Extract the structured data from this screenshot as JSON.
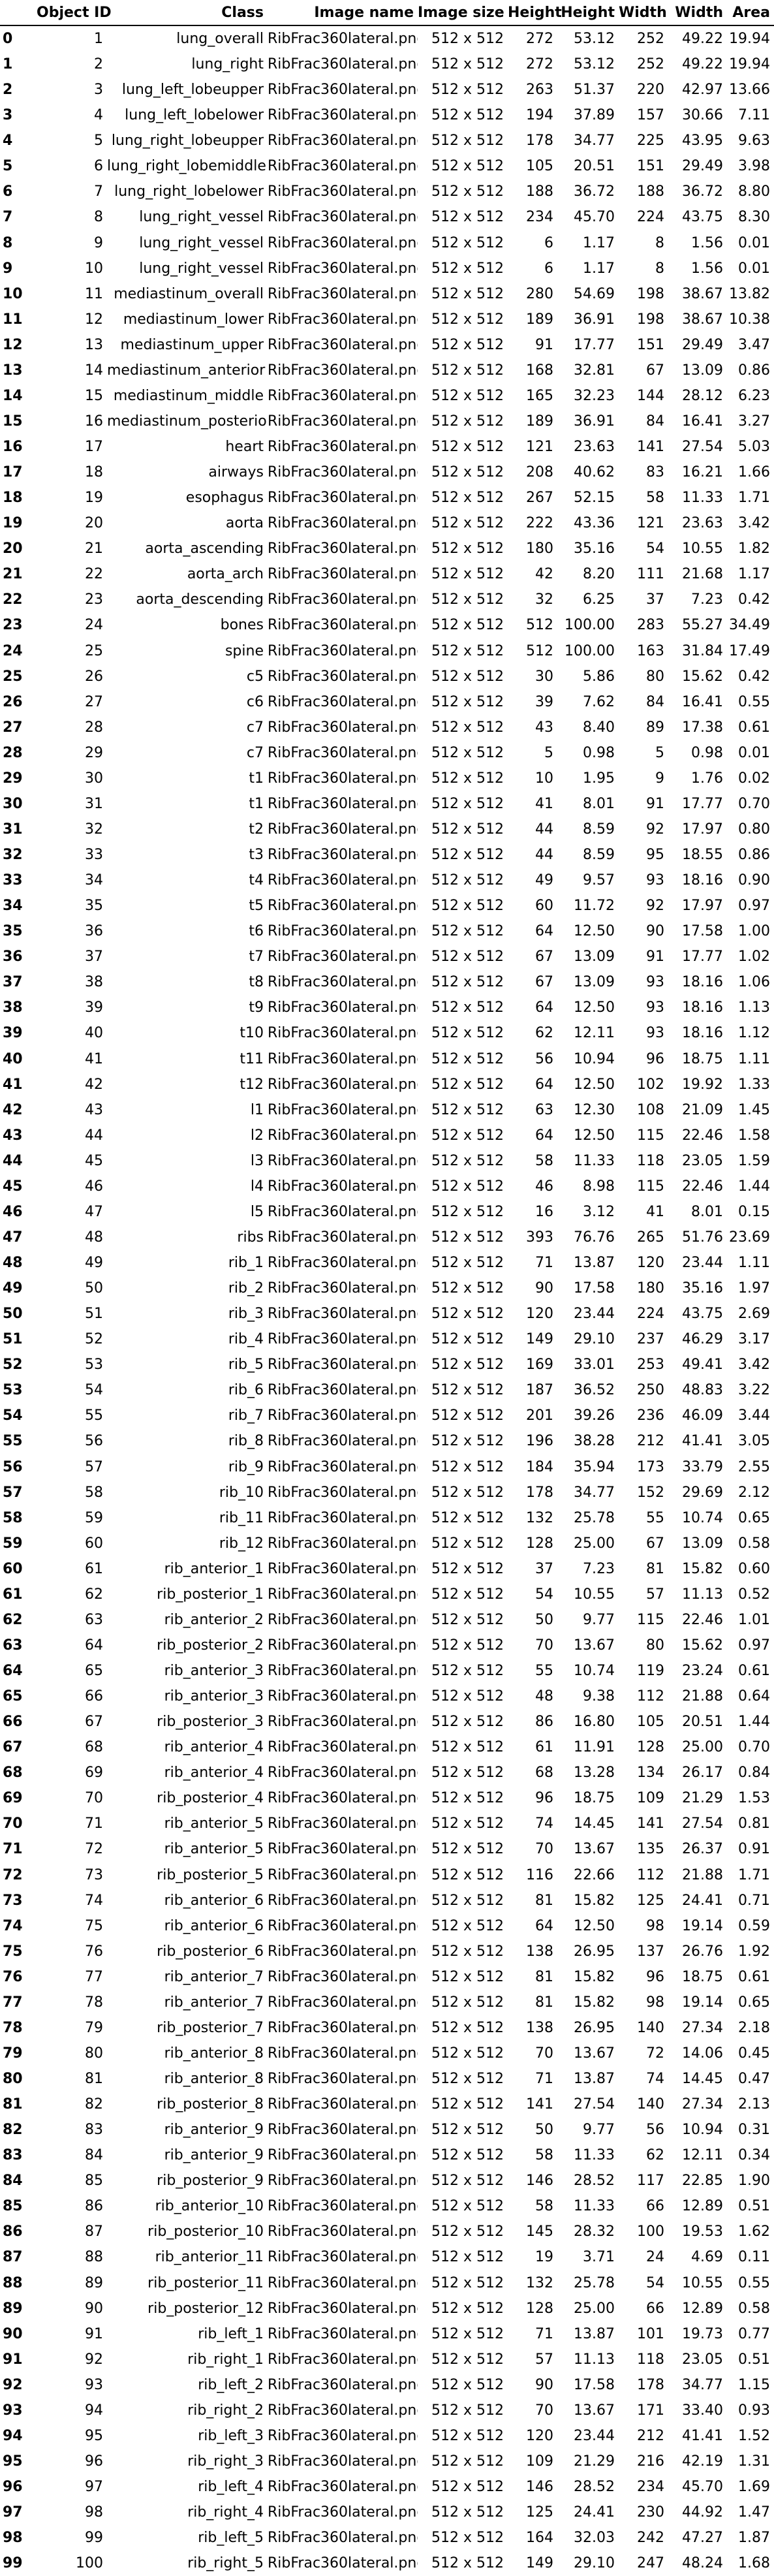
{
  "columns": [
    "",
    "Object ID",
    "Class",
    "Image name",
    "Image size",
    "Height",
    "Height",
    "Width",
    "Width",
    "Area"
  ],
  "rows": [
    [
      "0",
      "1",
      "lung_overall",
      "RibFrac360lateral.png",
      "512 x 512",
      "272",
      "53.12",
      "252",
      "49.22",
      "19.94"
    ],
    [
      "1",
      "2",
      "lung_right",
      "RibFrac360lateral.png",
      "512 x 512",
      "272",
      "53.12",
      "252",
      "49.22",
      "19.94"
    ],
    [
      "2",
      "3",
      "lung_left_lobeupper",
      "RibFrac360lateral.png",
      "512 x 512",
      "263",
      "51.37",
      "220",
      "42.97",
      "13.66"
    ],
    [
      "3",
      "4",
      "lung_left_lobelower",
      "RibFrac360lateral.png",
      "512 x 512",
      "194",
      "37.89",
      "157",
      "30.66",
      "7.11"
    ],
    [
      "4",
      "5",
      "lung_right_lobeupper",
      "RibFrac360lateral.png",
      "512 x 512",
      "178",
      "34.77",
      "225",
      "43.95",
      "9.63"
    ],
    [
      "5",
      "6",
      "lung_right_lobemiddle",
      "RibFrac360lateral.png",
      "512 x 512",
      "105",
      "20.51",
      "151",
      "29.49",
      "3.98"
    ],
    [
      "6",
      "7",
      "lung_right_lobelower",
      "RibFrac360lateral.png",
      "512 x 512",
      "188",
      "36.72",
      "188",
      "36.72",
      "8.80"
    ],
    [
      "7",
      "8",
      "lung_right_vessel",
      "RibFrac360lateral.png",
      "512 x 512",
      "234",
      "45.70",
      "224",
      "43.75",
      "8.30"
    ],
    [
      "8",
      "9",
      "lung_right_vessel",
      "RibFrac360lateral.png",
      "512 x 512",
      "6",
      "1.17",
      "8",
      "1.56",
      "0.01"
    ],
    [
      "9",
      "10",
      "lung_right_vessel",
      "RibFrac360lateral.png",
      "512 x 512",
      "6",
      "1.17",
      "8",
      "1.56",
      "0.01"
    ],
    [
      "10",
      "11",
      "mediastinum_overall",
      "RibFrac360lateral.png",
      "512 x 512",
      "280",
      "54.69",
      "198",
      "38.67",
      "13.82"
    ],
    [
      "11",
      "12",
      "mediastinum_lower",
      "RibFrac360lateral.png",
      "512 x 512",
      "189",
      "36.91",
      "198",
      "38.67",
      "10.38"
    ],
    [
      "12",
      "13",
      "mediastinum_upper",
      "RibFrac360lateral.png",
      "512 x 512",
      "91",
      "17.77",
      "151",
      "29.49",
      "3.47"
    ],
    [
      "13",
      "14",
      "mediastinum_anterior",
      "RibFrac360lateral.png",
      "512 x 512",
      "168",
      "32.81",
      "67",
      "13.09",
      "0.86"
    ],
    [
      "14",
      "15",
      "mediastinum_middle",
      "RibFrac360lateral.png",
      "512 x 512",
      "165",
      "32.23",
      "144",
      "28.12",
      "6.23"
    ],
    [
      "15",
      "16",
      "mediastinum_posterior",
      "RibFrac360lateral.png",
      "512 x 512",
      "189",
      "36.91",
      "84",
      "16.41",
      "3.27"
    ],
    [
      "16",
      "17",
      "heart",
      "RibFrac360lateral.png",
      "512 x 512",
      "121",
      "23.63",
      "141",
      "27.54",
      "5.03"
    ],
    [
      "17",
      "18",
      "airways",
      "RibFrac360lateral.png",
      "512 x 512",
      "208",
      "40.62",
      "83",
      "16.21",
      "1.66"
    ],
    [
      "18",
      "19",
      "esophagus",
      "RibFrac360lateral.png",
      "512 x 512",
      "267",
      "52.15",
      "58",
      "11.33",
      "1.71"
    ],
    [
      "19",
      "20",
      "aorta",
      "RibFrac360lateral.png",
      "512 x 512",
      "222",
      "43.36",
      "121",
      "23.63",
      "3.42"
    ],
    [
      "20",
      "21",
      "aorta_ascending",
      "RibFrac360lateral.png",
      "512 x 512",
      "180",
      "35.16",
      "54",
      "10.55",
      "1.82"
    ],
    [
      "21",
      "22",
      "aorta_arch",
      "RibFrac360lateral.png",
      "512 x 512",
      "42",
      "8.20",
      "111",
      "21.68",
      "1.17"
    ],
    [
      "22",
      "23",
      "aorta_descending",
      "RibFrac360lateral.png",
      "512 x 512",
      "32",
      "6.25",
      "37",
      "7.23",
      "0.42"
    ],
    [
      "23",
      "24",
      "bones",
      "RibFrac360lateral.png",
      "512 x 512",
      "512",
      "100.00",
      "283",
      "55.27",
      "34.49"
    ],
    [
      "24",
      "25",
      "spine",
      "RibFrac360lateral.png",
      "512 x 512",
      "512",
      "100.00",
      "163",
      "31.84",
      "17.49"
    ],
    [
      "25",
      "26",
      "c5",
      "RibFrac360lateral.png",
      "512 x 512",
      "30",
      "5.86",
      "80",
      "15.62",
      "0.42"
    ],
    [
      "26",
      "27",
      "c6",
      "RibFrac360lateral.png",
      "512 x 512",
      "39",
      "7.62",
      "84",
      "16.41",
      "0.55"
    ],
    [
      "27",
      "28",
      "c7",
      "RibFrac360lateral.png",
      "512 x 512",
      "43",
      "8.40",
      "89",
      "17.38",
      "0.61"
    ],
    [
      "28",
      "29",
      "c7",
      "RibFrac360lateral.png",
      "512 x 512",
      "5",
      "0.98",
      "5",
      "0.98",
      "0.01"
    ],
    [
      "29",
      "30",
      "t1",
      "RibFrac360lateral.png",
      "512 x 512",
      "10",
      "1.95",
      "9",
      "1.76",
      "0.02"
    ],
    [
      "30",
      "31",
      "t1",
      "RibFrac360lateral.png",
      "512 x 512",
      "41",
      "8.01",
      "91",
      "17.77",
      "0.70"
    ],
    [
      "31",
      "32",
      "t2",
      "RibFrac360lateral.png",
      "512 x 512",
      "44",
      "8.59",
      "92",
      "17.97",
      "0.80"
    ],
    [
      "32",
      "33",
      "t3",
      "RibFrac360lateral.png",
      "512 x 512",
      "44",
      "8.59",
      "95",
      "18.55",
      "0.86"
    ],
    [
      "33",
      "34",
      "t4",
      "RibFrac360lateral.png",
      "512 x 512",
      "49",
      "9.57",
      "93",
      "18.16",
      "0.90"
    ],
    [
      "34",
      "35",
      "t5",
      "RibFrac360lateral.png",
      "512 x 512",
      "60",
      "11.72",
      "92",
      "17.97",
      "0.97"
    ],
    [
      "35",
      "36",
      "t6",
      "RibFrac360lateral.png",
      "512 x 512",
      "64",
      "12.50",
      "90",
      "17.58",
      "1.00"
    ],
    [
      "36",
      "37",
      "t7",
      "RibFrac360lateral.png",
      "512 x 512",
      "67",
      "13.09",
      "91",
      "17.77",
      "1.02"
    ],
    [
      "37",
      "38",
      "t8",
      "RibFrac360lateral.png",
      "512 x 512",
      "67",
      "13.09",
      "93",
      "18.16",
      "1.06"
    ],
    [
      "38",
      "39",
      "t9",
      "RibFrac360lateral.png",
      "512 x 512",
      "64",
      "12.50",
      "93",
      "18.16",
      "1.13"
    ],
    [
      "39",
      "40",
      "t10",
      "RibFrac360lateral.png",
      "512 x 512",
      "62",
      "12.11",
      "93",
      "18.16",
      "1.12"
    ],
    [
      "40",
      "41",
      "t11",
      "RibFrac360lateral.png",
      "512 x 512",
      "56",
      "10.94",
      "96",
      "18.75",
      "1.11"
    ],
    [
      "41",
      "42",
      "t12",
      "RibFrac360lateral.png",
      "512 x 512",
      "64",
      "12.50",
      "102",
      "19.92",
      "1.33"
    ],
    [
      "42",
      "43",
      "l1",
      "RibFrac360lateral.png",
      "512 x 512",
      "63",
      "12.30",
      "108",
      "21.09",
      "1.45"
    ],
    [
      "43",
      "44",
      "l2",
      "RibFrac360lateral.png",
      "512 x 512",
      "64",
      "12.50",
      "115",
      "22.46",
      "1.58"
    ],
    [
      "44",
      "45",
      "l3",
      "RibFrac360lateral.png",
      "512 x 512",
      "58",
      "11.33",
      "118",
      "23.05",
      "1.59"
    ],
    [
      "45",
      "46",
      "l4",
      "RibFrac360lateral.png",
      "512 x 512",
      "46",
      "8.98",
      "115",
      "22.46",
      "1.44"
    ],
    [
      "46",
      "47",
      "l5",
      "RibFrac360lateral.png",
      "512 x 512",
      "16",
      "3.12",
      "41",
      "8.01",
      "0.15"
    ],
    [
      "47",
      "48",
      "ribs",
      "RibFrac360lateral.png",
      "512 x 512",
      "393",
      "76.76",
      "265",
      "51.76",
      "23.69"
    ],
    [
      "48",
      "49",
      "rib_1",
      "RibFrac360lateral.png",
      "512 x 512",
      "71",
      "13.87",
      "120",
      "23.44",
      "1.11"
    ],
    [
      "49",
      "50",
      "rib_2",
      "RibFrac360lateral.png",
      "512 x 512",
      "90",
      "17.58",
      "180",
      "35.16",
      "1.97"
    ],
    [
      "50",
      "51",
      "rib_3",
      "RibFrac360lateral.png",
      "512 x 512",
      "120",
      "23.44",
      "224",
      "43.75",
      "2.69"
    ],
    [
      "51",
      "52",
      "rib_4",
      "RibFrac360lateral.png",
      "512 x 512",
      "149",
      "29.10",
      "237",
      "46.29",
      "3.17"
    ],
    [
      "52",
      "53",
      "rib_5",
      "RibFrac360lateral.png",
      "512 x 512",
      "169",
      "33.01",
      "253",
      "49.41",
      "3.42"
    ],
    [
      "53",
      "54",
      "rib_6",
      "RibFrac360lateral.png",
      "512 x 512",
      "187",
      "36.52",
      "250",
      "48.83",
      "3.22"
    ],
    [
      "54",
      "55",
      "rib_7",
      "RibFrac360lateral.png",
      "512 x 512",
      "201",
      "39.26",
      "236",
      "46.09",
      "3.44"
    ],
    [
      "55",
      "56",
      "rib_8",
      "RibFrac360lateral.png",
      "512 x 512",
      "196",
      "38.28",
      "212",
      "41.41",
      "3.05"
    ],
    [
      "56",
      "57",
      "rib_9",
      "RibFrac360lateral.png",
      "512 x 512",
      "184",
      "35.94",
      "173",
      "33.79",
      "2.55"
    ],
    [
      "57",
      "58",
      "rib_10",
      "RibFrac360lateral.png",
      "512 x 512",
      "178",
      "34.77",
      "152",
      "29.69",
      "2.12"
    ],
    [
      "58",
      "59",
      "rib_11",
      "RibFrac360lateral.png",
      "512 x 512",
      "132",
      "25.78",
      "55",
      "10.74",
      "0.65"
    ],
    [
      "59",
      "60",
      "rib_12",
      "RibFrac360lateral.png",
      "512 x 512",
      "128",
      "25.00",
      "67",
      "13.09",
      "0.58"
    ],
    [
      "60",
      "61",
      "rib_anterior_1",
      "RibFrac360lateral.png",
      "512 x 512",
      "37",
      "7.23",
      "81",
      "15.82",
      "0.60"
    ],
    [
      "61",
      "62",
      "rib_posterior_1",
      "RibFrac360lateral.png",
      "512 x 512",
      "54",
      "10.55",
      "57",
      "11.13",
      "0.52"
    ],
    [
      "62",
      "63",
      "rib_anterior_2",
      "RibFrac360lateral.png",
      "512 x 512",
      "50",
      "9.77",
      "115",
      "22.46",
      "1.01"
    ],
    [
      "63",
      "64",
      "rib_posterior_2",
      "RibFrac360lateral.png",
      "512 x 512",
      "70",
      "13.67",
      "80",
      "15.62",
      "0.97"
    ],
    [
      "64",
      "65",
      "rib_anterior_3",
      "RibFrac360lateral.png",
      "512 x 512",
      "55",
      "10.74",
      "119",
      "23.24",
      "0.61"
    ],
    [
      "65",
      "66",
      "rib_anterior_3",
      "RibFrac360lateral.png",
      "512 x 512",
      "48",
      "9.38",
      "112",
      "21.88",
      "0.64"
    ],
    [
      "66",
      "67",
      "rib_posterior_3",
      "RibFrac360lateral.png",
      "512 x 512",
      "86",
      "16.80",
      "105",
      "20.51",
      "1.44"
    ],
    [
      "67",
      "68",
      "rib_anterior_4",
      "RibFrac360lateral.png",
      "512 x 512",
      "61",
      "11.91",
      "128",
      "25.00",
      "0.70"
    ],
    [
      "68",
      "69",
      "rib_anterior_4",
      "RibFrac360lateral.png",
      "512 x 512",
      "68",
      "13.28",
      "134",
      "26.17",
      "0.84"
    ],
    [
      "69",
      "70",
      "rib_posterior_4",
      "RibFrac360lateral.png",
      "512 x 512",
      "96",
      "18.75",
      "109",
      "21.29",
      "1.53"
    ],
    [
      "70",
      "71",
      "rib_anterior_5",
      "RibFrac360lateral.png",
      "512 x 512",
      "74",
      "14.45",
      "141",
      "27.54",
      "0.81"
    ],
    [
      "71",
      "72",
      "rib_anterior_5",
      "RibFrac360lateral.png",
      "512 x 512",
      "70",
      "13.67",
      "135",
      "26.37",
      "0.91"
    ],
    [
      "72",
      "73",
      "rib_posterior_5",
      "RibFrac360lateral.png",
      "512 x 512",
      "116",
      "22.66",
      "112",
      "21.88",
      "1.71"
    ],
    [
      "73",
      "74",
      "rib_anterior_6",
      "RibFrac360lateral.png",
      "512 x 512",
      "81",
      "15.82",
      "125",
      "24.41",
      "0.71"
    ],
    [
      "74",
      "75",
      "rib_anterior_6",
      "RibFrac360lateral.png",
      "512 x 512",
      "64",
      "12.50",
      "98",
      "19.14",
      "0.59"
    ],
    [
      "75",
      "76",
      "rib_posterior_6",
      "RibFrac360lateral.png",
      "512 x 512",
      "138",
      "26.95",
      "137",
      "26.76",
      "1.92"
    ],
    [
      "76",
      "77",
      "rib_anterior_7",
      "RibFrac360lateral.png",
      "512 x 512",
      "81",
      "15.82",
      "96",
      "18.75",
      "0.61"
    ],
    [
      "77",
      "78",
      "rib_anterior_7",
      "RibFrac360lateral.png",
      "512 x 512",
      "81",
      "15.82",
      "98",
      "19.14",
      "0.65"
    ],
    [
      "78",
      "79",
      "rib_posterior_7",
      "RibFrac360lateral.png",
      "512 x 512",
      "138",
      "26.95",
      "140",
      "27.34",
      "2.18"
    ],
    [
      "79",
      "80",
      "rib_anterior_8",
      "RibFrac360lateral.png",
      "512 x 512",
      "70",
      "13.67",
      "72",
      "14.06",
      "0.45"
    ],
    [
      "80",
      "81",
      "rib_anterior_8",
      "RibFrac360lateral.png",
      "512 x 512",
      "71",
      "13.87",
      "74",
      "14.45",
      "0.47"
    ],
    [
      "81",
      "82",
      "rib_posterior_8",
      "RibFrac360lateral.png",
      "512 x 512",
      "141",
      "27.54",
      "140",
      "27.34",
      "2.13"
    ],
    [
      "82",
      "83",
      "rib_anterior_9",
      "RibFrac360lateral.png",
      "512 x 512",
      "50",
      "9.77",
      "56",
      "10.94",
      "0.31"
    ],
    [
      "83",
      "84",
      "rib_anterior_9",
      "RibFrac360lateral.png",
      "512 x 512",
      "58",
      "11.33",
      "62",
      "12.11",
      "0.34"
    ],
    [
      "84",
      "85",
      "rib_posterior_9",
      "RibFrac360lateral.png",
      "512 x 512",
      "146",
      "28.52",
      "117",
      "22.85",
      "1.90"
    ],
    [
      "85",
      "86",
      "rib_anterior_10",
      "RibFrac360lateral.png",
      "512 x 512",
      "58",
      "11.33",
      "66",
      "12.89",
      "0.51"
    ],
    [
      "86",
      "87",
      "rib_posterior_10",
      "RibFrac360lateral.png",
      "512 x 512",
      "145",
      "28.32",
      "100",
      "19.53",
      "1.62"
    ],
    [
      "87",
      "88",
      "rib_anterior_11",
      "RibFrac360lateral.png",
      "512 x 512",
      "19",
      "3.71",
      "24",
      "4.69",
      "0.11"
    ],
    [
      "88",
      "89",
      "rib_posterior_11",
      "RibFrac360lateral.png",
      "512 x 512",
      "132",
      "25.78",
      "54",
      "10.55",
      "0.55"
    ],
    [
      "89",
      "90",
      "rib_posterior_12",
      "RibFrac360lateral.png",
      "512 x 512",
      "128",
      "25.00",
      "66",
      "12.89",
      "0.58"
    ],
    [
      "90",
      "91",
      "rib_left_1",
      "RibFrac360lateral.png",
      "512 x 512",
      "71",
      "13.87",
      "101",
      "19.73",
      "0.77"
    ],
    [
      "91",
      "92",
      "rib_right_1",
      "RibFrac360lateral.png",
      "512 x 512",
      "57",
      "11.13",
      "118",
      "23.05",
      "0.51"
    ],
    [
      "92",
      "93",
      "rib_left_2",
      "RibFrac360lateral.png",
      "512 x 512",
      "90",
      "17.58",
      "178",
      "34.77",
      "1.15"
    ],
    [
      "93",
      "94",
      "rib_right_2",
      "RibFrac360lateral.png",
      "512 x 512",
      "70",
      "13.67",
      "171",
      "33.40",
      "0.93"
    ],
    [
      "94",
      "95",
      "rib_left_3",
      "RibFrac360lateral.png",
      "512 x 512",
      "120",
      "23.44",
      "212",
      "41.41",
      "1.52"
    ],
    [
      "95",
      "96",
      "rib_right_3",
      "RibFrac360lateral.png",
      "512 x 512",
      "109",
      "21.29",
      "216",
      "42.19",
      "1.31"
    ],
    [
      "96",
      "97",
      "rib_left_4",
      "RibFrac360lateral.png",
      "512 x 512",
      "146",
      "28.52",
      "234",
      "45.70",
      "1.69"
    ],
    [
      "97",
      "98",
      "rib_right_4",
      "RibFrac360lateral.png",
      "512 x 512",
      "125",
      "24.41",
      "230",
      "44.92",
      "1.47"
    ],
    [
      "98",
      "99",
      "rib_left_5",
      "RibFrac360lateral.png",
      "512 x 512",
      "164",
      "32.03",
      "242",
      "47.27",
      "1.87"
    ],
    [
      "99",
      "100",
      "rib_right_5",
      "RibFrac360lateral.png",
      "512 x 512",
      "149",
      "29.10",
      "247",
      "48.24",
      "1.68"
    ]
  ]
}
